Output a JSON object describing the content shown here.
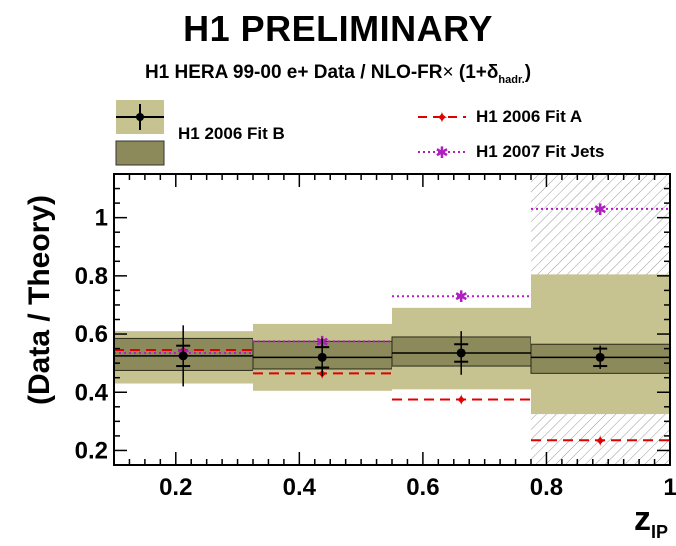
{
  "header": {
    "title": "H1 PRELIMINARY",
    "subtitle_main": "H1 HERA 99-00 e+ Data / NLO-FR",
    "subtitle_times": "×",
    "subtitle_open": " (1+δ",
    "subtitle_sub": "hadr.",
    "subtitle_close": ")"
  },
  "legend": {
    "fit_b": "H1 2006 Fit B",
    "fit_a": "H1 2006 Fit A",
    "jets": "H1 2007 Fit Jets"
  },
  "axes": {
    "xlabel_main": "z",
    "xlabel_sub": "IP",
    "ylabel": "(Data / Theory)"
  },
  "colors": {
    "outer_band": "#c6c391",
    "inner_band": "#8c8a5a",
    "fit_a": "#e00000",
    "jets": "#b020c0",
    "data": "#000000"
  },
  "chart_data": {
    "type": "scatter",
    "xlim": [
      0.1,
      1.0
    ],
    "ylim": [
      0.15,
      1.15
    ],
    "x_ticks": [
      0.2,
      0.4,
      0.6,
      0.8,
      1
    ],
    "x_tick_labels": [
      "0.2",
      "0.4",
      "0.6",
      "0.8",
      "1"
    ],
    "y_ticks": [
      0.2,
      0.4,
      0.6,
      0.8,
      1
    ],
    "y_tick_labels": [
      "0.2",
      "0.4",
      "0.6",
      "0.8",
      "1"
    ],
    "bins": [
      [
        0.1,
        0.325
      ],
      [
        0.325,
        0.55
      ],
      [
        0.55,
        0.775
      ],
      [
        0.775,
        1.0
      ]
    ],
    "hatched_bin": [
      0.775,
      1.0
    ],
    "series": [
      {
        "name": "H1 2006 Fit B",
        "kind": "bands",
        "outer": [
          [
            0.43,
            0.61
          ],
          [
            0.405,
            0.635
          ],
          [
            0.41,
            0.69
          ],
          [
            0.325,
            0.805
          ]
        ],
        "inner": [
          [
            0.475,
            0.585
          ],
          [
            0.48,
            0.575
          ],
          [
            0.49,
            0.59
          ],
          [
            0.465,
            0.565
          ]
        ]
      },
      {
        "name": "data",
        "kind": "points",
        "x": [
          0.212,
          0.437,
          0.662,
          0.887
        ],
        "y": [
          0.525,
          0.52,
          0.535,
          0.52
        ],
        "stat_err": [
          0.035,
          0.035,
          0.03,
          0.03
        ],
        "total_err": [
          0.105,
          0.065,
          0.075,
          0.04
        ]
      },
      {
        "name": "H1 2006 Fit A",
        "kind": "steps",
        "x": [
          0.212,
          0.437,
          0.662,
          0.887
        ],
        "y": [
          0.545,
          0.465,
          0.375,
          0.235
        ]
      },
      {
        "name": "H1 2007 Fit Jets",
        "kind": "steps",
        "x": [
          0.212,
          0.437,
          0.662,
          0.887
        ],
        "y": [
          0.535,
          0.575,
          0.73,
          1.03
        ]
      }
    ]
  }
}
